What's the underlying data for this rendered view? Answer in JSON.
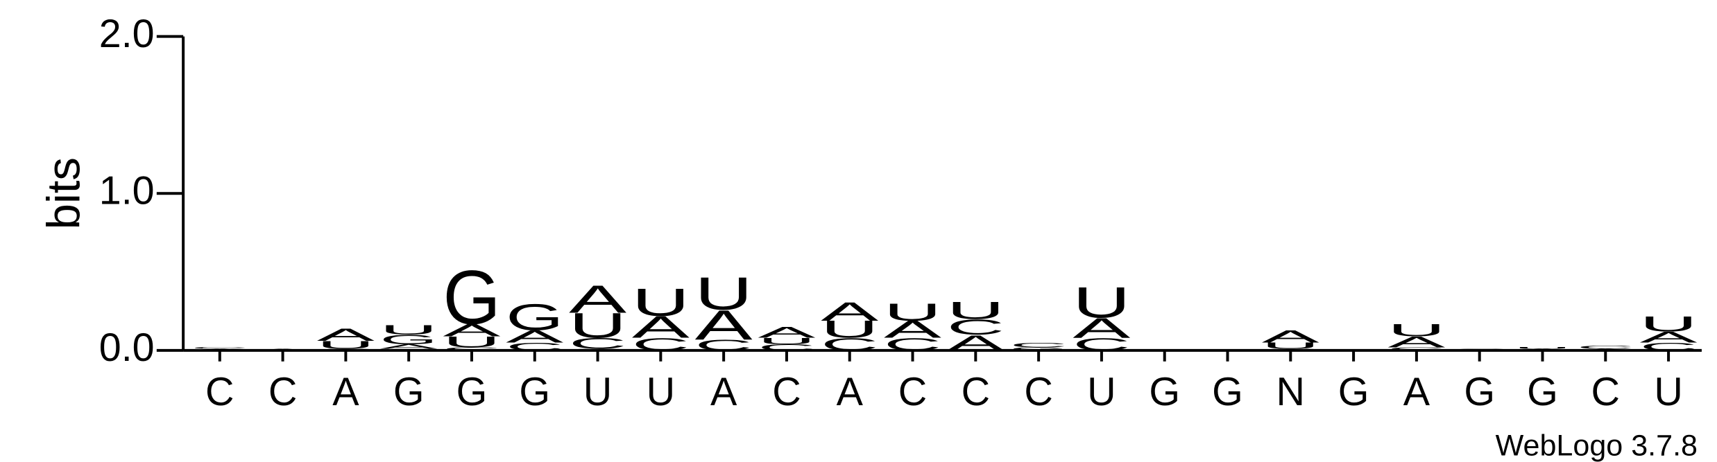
{
  "chart_data": {
    "type": "logo",
    "y_label": "bits",
    "footer": "WebLogo 3.7.8",
    "categories": [
      "C",
      "C",
      "A",
      "G",
      "G",
      "G",
      "U",
      "U",
      "A",
      "C",
      "A",
      "C",
      "C",
      "C",
      "U",
      "G",
      "G",
      "N",
      "G",
      "A",
      "G",
      "G",
      "C",
      "U"
    ],
    "ylim": [
      0,
      2
    ],
    "yticks": [
      {
        "value": 0,
        "label": "0.0"
      },
      {
        "value": 1,
        "label": "1.0"
      },
      {
        "value": 2,
        "label": "2.0"
      }
    ],
    "series": [
      {
        "name": "A",
        "color": "#f7931e",
        "values": [
          0.01,
          0.01,
          0.08,
          0.03,
          0.08,
          0.08,
          0.18,
          0.14,
          0.19,
          0.07,
          0.12,
          0.11,
          0.1,
          0,
          0.13,
          0,
          0,
          0.08,
          0,
          0.07,
          0,
          0.01,
          0.01,
          0.07
        ]
      },
      {
        "name": "C",
        "color": "#1414e6",
        "values": [
          0.01,
          0,
          0.01,
          0.01,
          0.02,
          0.05,
          0.07,
          0.08,
          0.07,
          0.04,
          0.08,
          0.08,
          0.1,
          0.03,
          0.08,
          0,
          0,
          0.01,
          0,
          0.02,
          0.01,
          0,
          0.02,
          0.05
        ]
      },
      {
        "name": "G",
        "color": "#1414e6",
        "values": [
          0,
          0,
          0,
          0.06,
          0.35,
          0.17,
          0.01,
          0,
          0,
          0,
          0,
          0,
          0,
          0.02,
          0,
          0,
          0,
          0,
          0,
          0,
          0,
          0,
          0,
          0
        ]
      },
      {
        "name": "U",
        "color": "#f7931e",
        "values": [
          0,
          0,
          0.05,
          0.06,
          0.07,
          0,
          0.16,
          0.18,
          0.21,
          0.04,
          0.11,
          0.11,
          0.11,
          0,
          0.2,
          0,
          0,
          0.04,
          0,
          0.08,
          0,
          0.01,
          0,
          0.1
        ]
      }
    ]
  }
}
